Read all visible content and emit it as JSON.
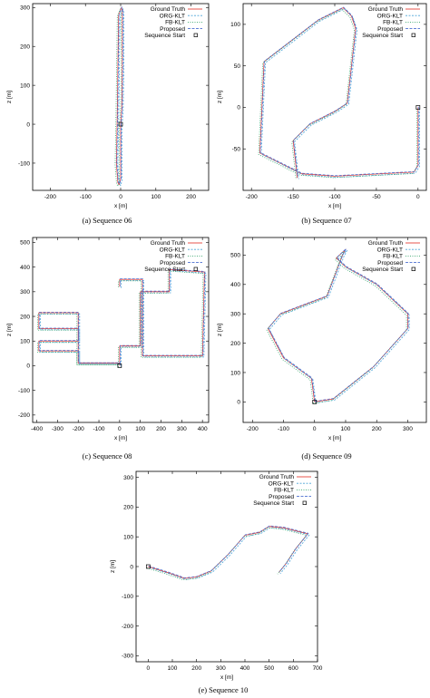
{
  "legend": {
    "ground_truth": "Ground Truth",
    "org_klt": "ORG-KLT",
    "fb_klt": "FB-KLT",
    "proposed": "Proposed",
    "sequence_start": "Sequence Start"
  },
  "colors": {
    "ground_truth": "#e8413a",
    "org_klt": "#4aa3d8",
    "fb_klt": "#3aa76d",
    "proposed": "#4b6fd0",
    "start_marker": "#000000"
  },
  "chart_data": [
    {
      "type": "line",
      "id": "seq06",
      "caption": "(a)  Sequence 06",
      "xlabel": "x [m]",
      "ylabel": "z [m]",
      "xlim": [
        -250,
        250
      ],
      "ylim": [
        -170,
        310
      ],
      "xticks": [
        -200,
        -100,
        0,
        100,
        200
      ],
      "yticks": [
        -100,
        0,
        100,
        200,
        300
      ],
      "legend_position": "top-right",
      "start": [
        0,
        0
      ],
      "series": [
        {
          "key": "ground_truth",
          "x": [
            0,
            0,
            -4,
            -8,
            -12,
            -10,
            -6,
            2,
            5,
            5,
            3,
            0
          ],
          "y": [
            0,
            -140,
            -155,
            -150,
            -100,
            0,
            280,
            300,
            290,
            150,
            40,
            0
          ]
        }
      ]
    },
    {
      "type": "line",
      "id": "seq07",
      "caption": "(b)  Sequence 07",
      "xlabel": "x [m]",
      "ylabel": "z [m]",
      "xlim": [
        -210,
        10
      ],
      "ylim": [
        -100,
        125
      ],
      "xticks": [
        -200,
        -150,
        -100,
        -50,
        0
      ],
      "yticks": [
        -50,
        0,
        50,
        100
      ],
      "legend_position": "top-right",
      "start": [
        0,
        0
      ],
      "series": [
        {
          "key": "ground_truth",
          "x": [
            0,
            0,
            -5,
            -100,
            -140,
            -190,
            -185,
            -120,
            -90,
            -80,
            -75,
            -85,
            -100,
            -130,
            -150,
            -145
          ],
          "y": [
            0,
            -70,
            -78,
            -83,
            -80,
            -55,
            55,
            105,
            120,
            110,
            95,
            5,
            -5,
            -20,
            -40,
            -85
          ]
        }
      ]
    },
    {
      "type": "line",
      "id": "seq08",
      "caption": "(c)  Sequence 08",
      "xlabel": "x [m]",
      "ylabel": "z [m]",
      "xlim": [
        -420,
        430
      ],
      "ylim": [
        -230,
        520
      ],
      "xticks": [
        -400,
        -300,
        -200,
        -100,
        0,
        100,
        200,
        300,
        400
      ],
      "yticks": [
        -200,
        -100,
        0,
        100,
        200,
        300,
        400,
        500
      ],
      "legend_position": "top-right",
      "start": [
        0,
        0
      ],
      "series": [
        {
          "key": "ground_truth",
          "x": [
            0,
            0,
            -200,
            -200,
            -390,
            -390,
            -200,
            -200,
            -390,
            -390,
            -200,
            -200,
            0,
            0,
            100,
            100,
            240,
            240,
            410,
            400,
            110,
            110,
            0,
            0
          ],
          "y": [
            0,
            10,
            10,
            60,
            60,
            100,
            100,
            150,
            150,
            215,
            215,
            10,
            10,
            80,
            80,
            300,
            300,
            390,
            380,
            40,
            40,
            350,
            350,
            320
          ]
        }
      ]
    },
    {
      "type": "line",
      "id": "seq09",
      "caption": "(d)  Sequence 09",
      "xlabel": "x [m]",
      "ylabel": "z [m]",
      "xlim": [
        -230,
        360
      ],
      "ylim": [
        -70,
        560
      ],
      "xticks": [
        -200,
        -100,
        0,
        100,
        200,
        300
      ],
      "yticks": [
        0,
        100,
        200,
        300,
        400,
        500
      ],
      "legend_position": "top-right",
      "start": [
        0,
        0
      ],
      "series": [
        {
          "key": "ground_truth",
          "x": [
            0,
            -10,
            -100,
            -150,
            -110,
            -60,
            40,
            90,
            100,
            70,
            100,
            200,
            300,
            300,
            190,
            60,
            0
          ],
          "y": [
            0,
            80,
            150,
            250,
            300,
            320,
            360,
            500,
            520,
            490,
            460,
            400,
            300,
            250,
            120,
            10,
            0
          ]
        }
      ]
    },
    {
      "type": "line",
      "id": "seq10",
      "caption": "(e)  Sequence 10",
      "xlabel": "x [m]",
      "ylabel": "z [m]",
      "xlim": [
        -50,
        700
      ],
      "ylim": [
        -320,
        320
      ],
      "xticks": [
        0,
        100,
        200,
        300,
        400,
        500,
        600,
        700
      ],
      "yticks": [
        -300,
        -200,
        -100,
        0,
        100,
        200,
        300
      ],
      "legend_position": "top-right",
      "start": [
        0,
        0
      ],
      "series": [
        {
          "key": "ground_truth",
          "x": [
            0,
            80,
            150,
            200,
            260,
            330,
            400,
            460,
            500,
            560,
            660,
            610,
            570,
            550,
            540
          ],
          "y": [
            0,
            -20,
            -40,
            -35,
            -15,
            40,
            105,
            115,
            135,
            130,
            110,
            60,
            10,
            -10,
            -20
          ]
        }
      ]
    }
  ]
}
